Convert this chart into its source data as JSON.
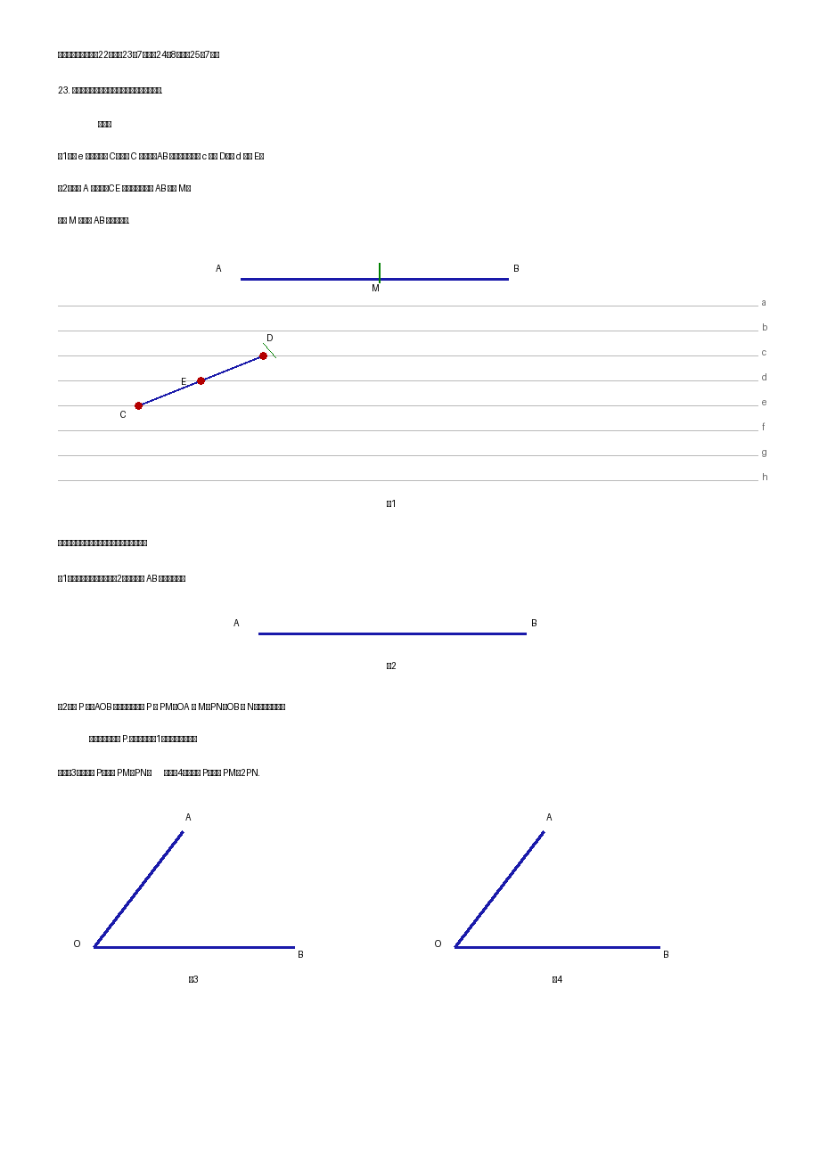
{
  "bg_color": "#ffffff",
  "blue_color": "#1a1aaa",
  "green_color": "#008000",
  "gray_color": "#c0c0c0",
  "dark_color": "#333333"
}
